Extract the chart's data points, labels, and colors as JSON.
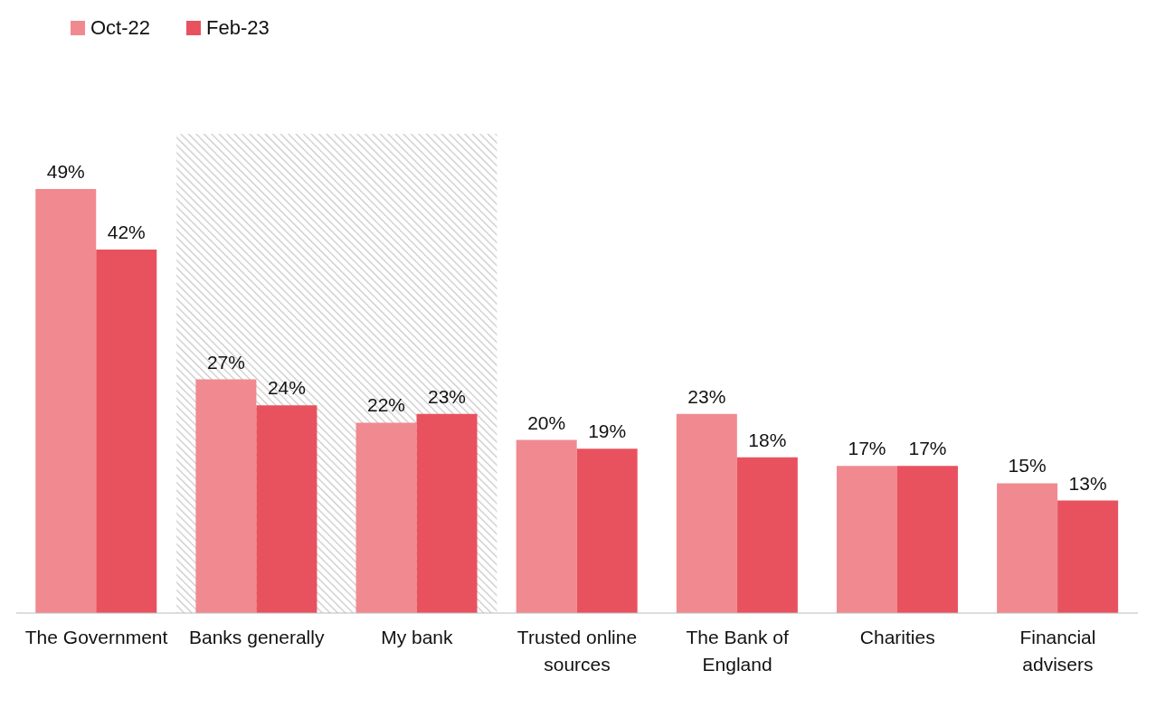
{
  "chart_data": {
    "type": "bar",
    "categories": [
      "The Government",
      "Banks generally",
      "My bank",
      "Trusted online sources",
      "The Bank of England",
      "Charities",
      "Financial advisers"
    ],
    "series": [
      {
        "name": "Oct-22",
        "color": "#f08a90",
        "values": [
          49,
          27,
          22,
          20,
          23,
          17,
          15
        ],
        "value_labels": [
          "49%",
          "27%",
          "22%",
          "20%",
          "23%",
          "17%",
          "15%"
        ]
      },
      {
        "name": "Feb-23",
        "color": "#e8525e",
        "values": [
          42,
          24,
          23,
          19,
          18,
          17,
          13
        ],
        "value_labels": [
          "42%",
          "24%",
          "23%",
          "19%",
          "18%",
          "17%",
          "13%"
        ]
      }
    ],
    "bands": [
      {
        "axis": "x",
        "from": "Banks generally",
        "to": "My bank",
        "color": "#c8c8c8"
      }
    ],
    "legend": "top left"
  }
}
